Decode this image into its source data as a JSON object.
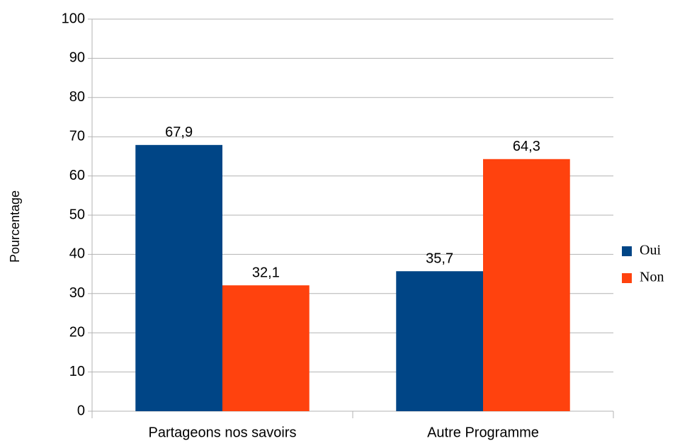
{
  "chart_data": {
    "type": "bar",
    "y_label": "Pourcentage",
    "categories": [
      "Partageons nos savoirs",
      "Autre Programme"
    ],
    "series": [
      {
        "name": "Oui",
        "color": "#004586",
        "values": [
          67.9,
          35.7
        ],
        "value_labels": [
          "67,9",
          "35,7"
        ]
      },
      {
        "name": "Non",
        "color": "#ff420e",
        "values": [
          32.1,
          64.3
        ],
        "value_labels": [
          "32,1",
          "64,3"
        ]
      }
    ],
    "ylim": [
      0,
      100
    ],
    "yticks": [
      0,
      10,
      20,
      30,
      40,
      50,
      60,
      70,
      80,
      90,
      100
    ],
    "grid": true,
    "legend": "right"
  }
}
